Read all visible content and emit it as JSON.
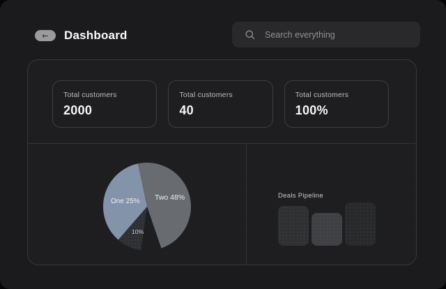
{
  "header": {
    "back_icon": "←",
    "title": "Dashboard",
    "search_placeholder": "Search everything"
  },
  "stats": {
    "cards": [
      {
        "label": "Total customers",
        "value": "2000"
      },
      {
        "label": "Total customers",
        "value": "40"
      },
      {
        "label": "Total customers",
        "value": "100%"
      }
    ]
  },
  "colors": {
    "window_bg": "#1b1b1d",
    "panel_bg": "#1e1e20",
    "border": "#38383b",
    "slice_one": "#8394aa",
    "slice_two": "#686c71",
    "slice_ten": "#2f3033",
    "bar_1": "#2f3032",
    "bar_2": "#3f4043",
    "bar_3": "#28292b"
  },
  "chart_data": [
    {
      "type": "pie",
      "title": "",
      "legend_position": "none",
      "slices": [
        {
          "name": "Two",
          "label": "Two 48%",
          "value": 48,
          "color": "#686c71",
          "start_deg": -12,
          "end_deg": 161,
          "textured": false
        },
        {
          "name": "Ten",
          "label": "10%",
          "value": 10,
          "color": "#2f3033",
          "start_deg": 188,
          "end_deg": 221,
          "textured": true
        },
        {
          "name": "One",
          "label": "One 25%",
          "value": 25,
          "color": "#8394aa",
          "start_deg": 221,
          "end_deg": 348,
          "textured": false
        }
      ],
      "gap_deg": [
        161,
        188
      ],
      "note": "wedge between 161deg and 188deg is cut out showing panel background"
    },
    {
      "type": "bar",
      "title": "Deals Pipeline",
      "categories": [
        "",
        "",
        ""
      ],
      "values": [
        57,
        47,
        62
      ],
      "colors": [
        "#2f3032",
        "#3f4043",
        "#28292b"
      ],
      "xlabel": "",
      "ylabel": "",
      "axes_visible": false
    }
  ]
}
